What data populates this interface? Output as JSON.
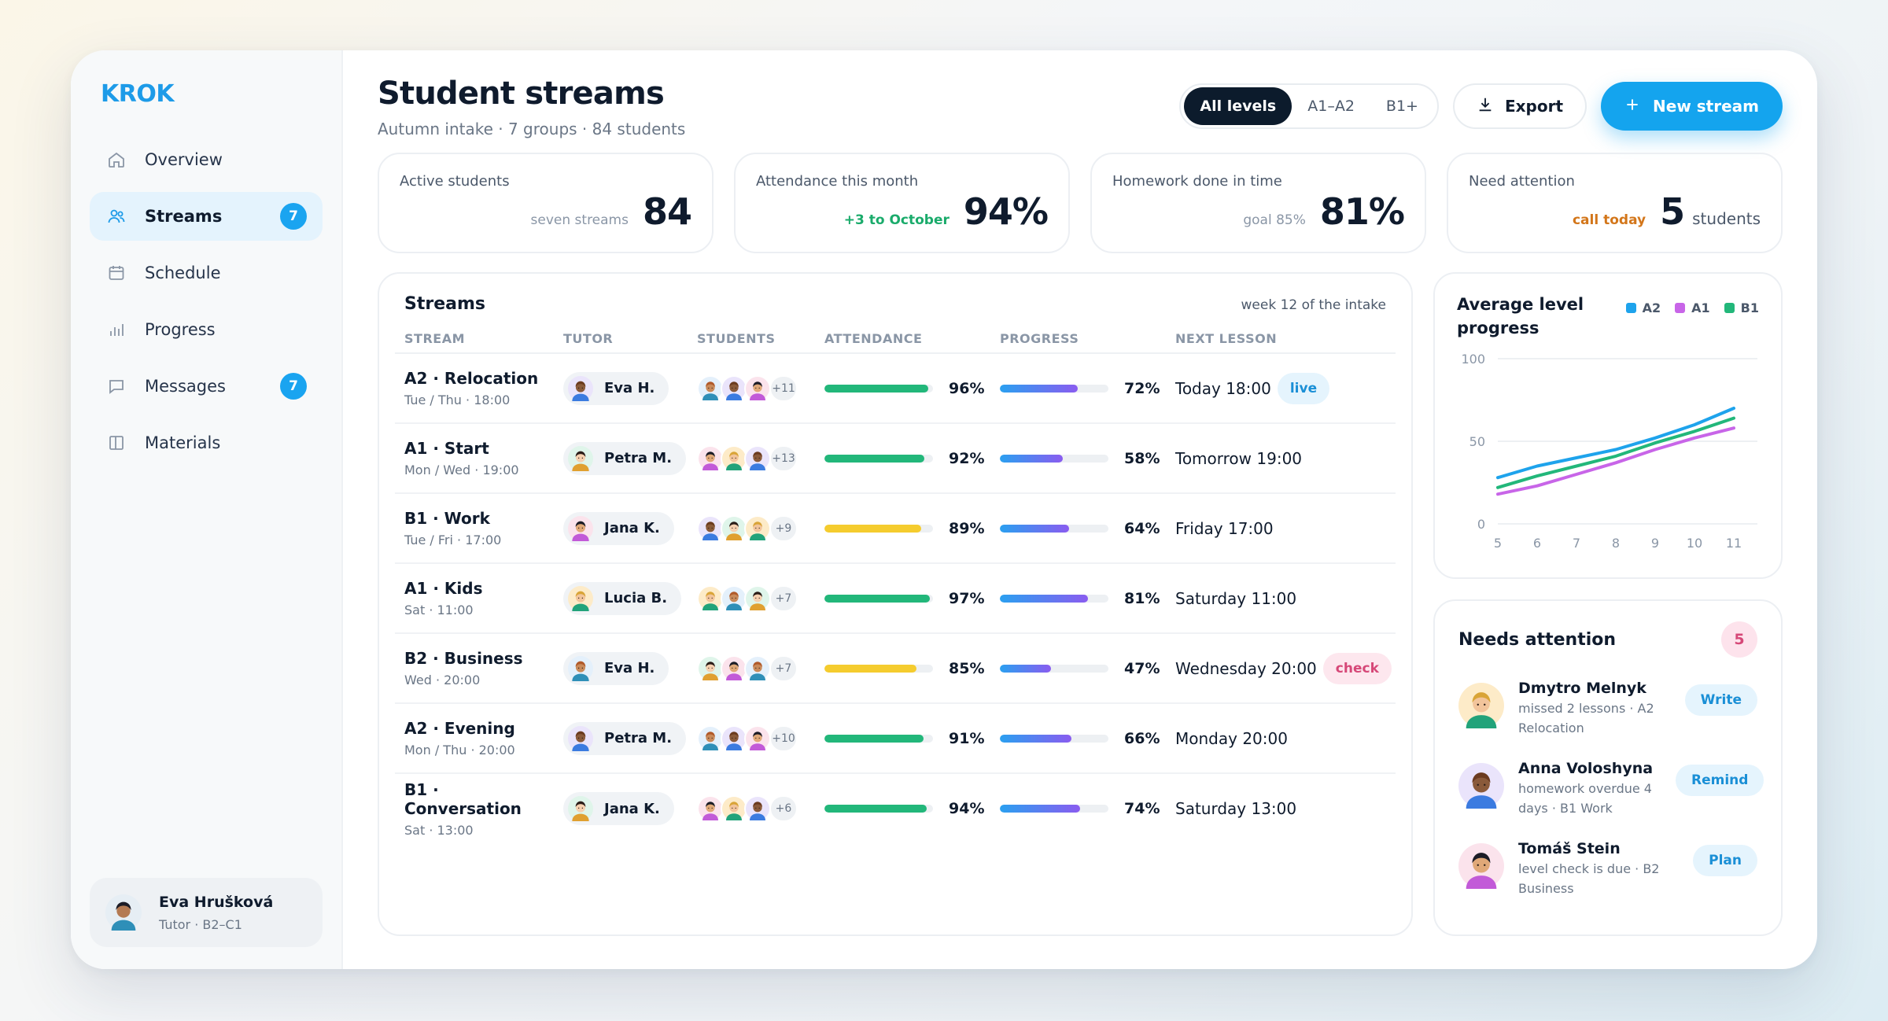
{
  "app": {
    "logo": "KROK"
  },
  "sidebar": {
    "items": [
      {
        "label": "Overview",
        "icon": "home-icon"
      },
      {
        "label": "Streams",
        "icon": "users-icon",
        "badge": "7",
        "active": true
      },
      {
        "label": "Schedule",
        "icon": "calendar-icon"
      },
      {
        "label": "Progress",
        "icon": "bar-chart-icon"
      },
      {
        "label": "Messages",
        "icon": "message-icon",
        "badge": "7"
      },
      {
        "label": "Materials",
        "icon": "book-icon"
      }
    ],
    "profile": {
      "name": "Eva Hrušková",
      "role": "Tutor · B2–C1"
    }
  },
  "header": {
    "title": "Student streams",
    "subtitle": "Autumn intake · 7 groups · 84 students",
    "levels": [
      "All levels",
      "A1–A2",
      "B1+"
    ],
    "active_level": "All levels",
    "export_label": "Export",
    "new_label": "New stream"
  },
  "stats": [
    {
      "label": "Active students",
      "note": "seven streams",
      "value": "84"
    },
    {
      "label": "Attendance this month",
      "note": "+3 to October",
      "value": "94%"
    },
    {
      "label": "Homework done in time",
      "note": "goal 85%",
      "value": "81%"
    },
    {
      "label": "Need attention",
      "note": "call today",
      "value": "5",
      "unit": "students"
    }
  ],
  "streams": {
    "title": "Streams",
    "week_note": "week 12 of the intake",
    "columns": [
      "STREAM",
      "TUTOR",
      "STUDENTS",
      "ATTENDANCE",
      "PROGRESS",
      "NEXT LESSON"
    ],
    "rows": [
      {
        "name": "A2 · Relocation",
        "schedule": "Tue / Thu · 18:00",
        "tutor": "Eva H.",
        "more": "+11",
        "attendance": 96,
        "attendance_label": "96%",
        "progress": 72,
        "progress_label": "72%",
        "next": "Today 18:00",
        "tag": "live"
      },
      {
        "name": "A1 · Start",
        "schedule": "Mon / Wed · 19:00",
        "tutor": "Petra M.",
        "more": "+13",
        "attendance": 92,
        "attendance_label": "92%",
        "progress": 58,
        "progress_label": "58%",
        "next": "Tomorrow 19:00",
        "tag": ""
      },
      {
        "name": "B1 · Work",
        "schedule": "Tue / Fri · 17:00",
        "tutor": "Jana K.",
        "more": "+9",
        "attendance": 89,
        "attendance_label": "89%",
        "progress": 64,
        "progress_label": "64%",
        "next": "Friday 17:00",
        "tag": ""
      },
      {
        "name": "A1 · Kids",
        "schedule": "Sat · 11:00",
        "tutor": "Lucia B.",
        "more": "+7",
        "attendance": 97,
        "attendance_label": "97%",
        "progress": 81,
        "progress_label": "81%",
        "next": "Saturday 11:00",
        "tag": ""
      },
      {
        "name": "B2 · Business",
        "schedule": "Wed · 20:00",
        "tutor": "Eva H.",
        "more": "+7",
        "attendance": 85,
        "attendance_label": "85%",
        "progress": 47,
        "progress_label": "47%",
        "next": "Wednesday 20:00",
        "tag": "check"
      },
      {
        "name": "A2 · Evening",
        "schedule": "Mon / Thu · 20:00",
        "tutor": "Petra M.",
        "more": "+10",
        "attendance": 91,
        "attendance_label": "91%",
        "progress": 66,
        "progress_label": "66%",
        "next": "Monday 20:00",
        "tag": ""
      },
      {
        "name": "B1 · Conversation",
        "schedule": "Sat · 13:00",
        "tutor": "Jana K.",
        "more": "+6",
        "attendance": 94,
        "attendance_label": "94%",
        "progress": 74,
        "progress_label": "74%",
        "next": "Saturday 13:00",
        "tag": ""
      }
    ]
  },
  "chart_data": {
    "type": "line",
    "title": "Average level progress",
    "x": [
      5,
      6,
      7,
      8,
      9,
      10,
      11
    ],
    "ylim": [
      0,
      100
    ],
    "yticks": [
      0,
      50,
      100
    ],
    "grid": true,
    "legend": "top-right",
    "series": [
      {
        "name": "A2",
        "color": "#1ea3ec",
        "values": [
          28,
          35,
          40,
          45,
          52,
          60,
          70
        ]
      },
      {
        "name": "A1",
        "color": "#c865e8",
        "values": [
          18,
          23,
          30,
          37,
          45,
          52,
          58
        ]
      },
      {
        "name": "B1",
        "color": "#22b77a",
        "values": [
          22,
          29,
          35,
          41,
          49,
          56,
          64
        ]
      }
    ]
  },
  "attention": {
    "title": "Needs attention",
    "count": "5",
    "items": [
      {
        "name": "Dmytro Melnyk",
        "desc": "missed 2 lessons · A2 Relocation",
        "action": "Write"
      },
      {
        "name": "Anna Voloshyna",
        "desc": "homework overdue 4 days · B1 Work",
        "action": "Remind"
      },
      {
        "name": "Tomáš Stein",
        "desc": "level check is due · B2 Business",
        "action": "Plan"
      }
    ]
  },
  "colors": {
    "accent": "#14a4ee",
    "attendance_good": "#22b77a",
    "attendance_warn": "#f5cc2e",
    "progress_start": "#2aa0f0",
    "progress_end": "#8a5cf0"
  }
}
